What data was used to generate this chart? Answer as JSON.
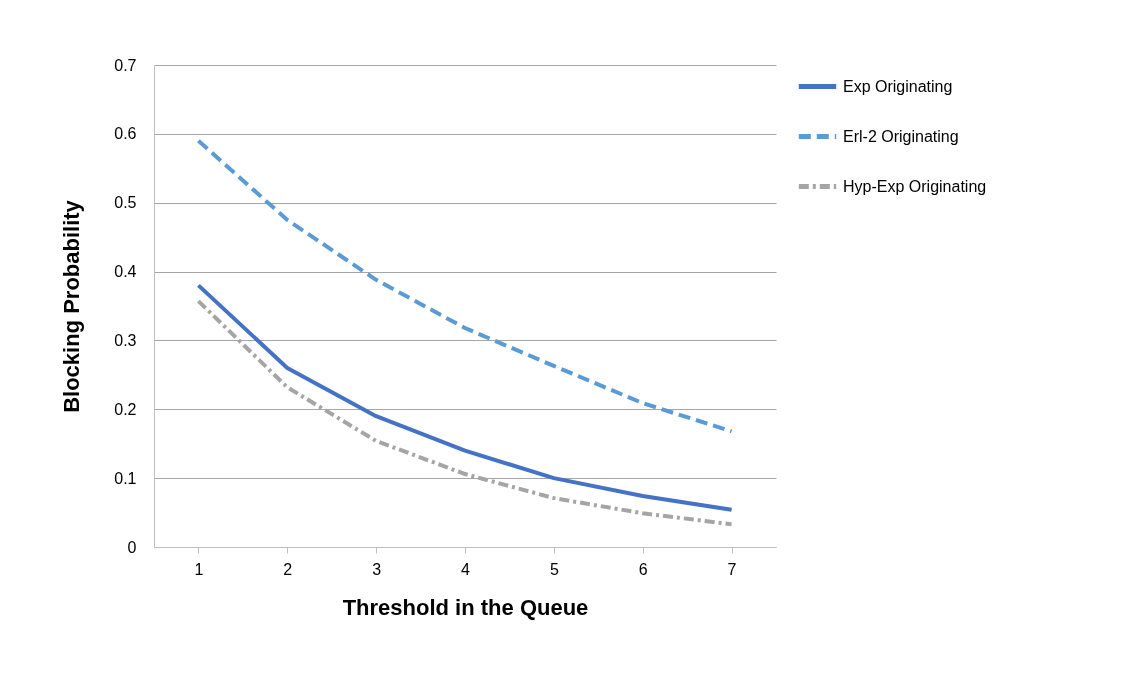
{
  "chart_data": {
    "type": "line",
    "xlabel": "Threshold in the Queue",
    "ylabel": "Blocking Probability",
    "categories": [
      "1",
      "2",
      "3",
      "4",
      "5",
      "6",
      "7"
    ],
    "series": [
      {
        "name": "Exp Originating",
        "color": "#4472c4",
        "line_style": "solid",
        "values": [
          0.38,
          0.26,
          0.19,
          0.14,
          0.1,
          0.074,
          0.054
        ]
      },
      {
        "name": "Erl-2 Originating",
        "color": "#5b9bd5",
        "line_style": "dashed",
        "values": [
          0.59,
          0.475,
          0.388,
          0.318,
          0.263,
          0.209,
          0.168
        ]
      },
      {
        "name": "Hyp-Exp Originating",
        "color": "#a5a5a5",
        "line_style": "dashdot",
        "values": [
          0.357,
          0.232,
          0.154,
          0.106,
          0.071,
          0.049,
          0.033
        ]
      }
    ],
    "ylim": [
      0,
      0.7
    ],
    "yticks": [
      0,
      0.1,
      0.2,
      0.3,
      0.4,
      0.5,
      0.6,
      0.7
    ],
    "grid": "y",
    "legend": "right",
    "marker": "none"
  }
}
